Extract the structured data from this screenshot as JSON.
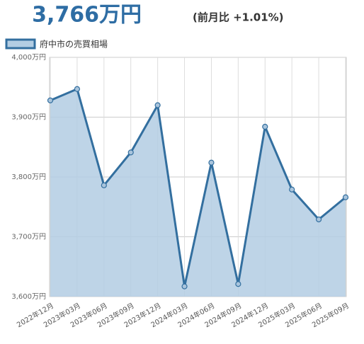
{
  "chart_data": {
    "type": "area",
    "title": "3,766万円",
    "subtitle": "(前月比 +1.01%)",
    "legend": "府中市の売買相場",
    "categories": [
      "2022年12月",
      "2023年03月",
      "2023年06月",
      "2023年09月",
      "2023年12月",
      "2024年03月",
      "2024年06月",
      "2024年09月",
      "2024年12月",
      "2025年03月",
      "2025年06月",
      "2025年09月"
    ],
    "series": [
      {
        "name": "府中市の売買相場",
        "color": "#336f9f",
        "fill": "#b3cde3",
        "values": [
          3928,
          3947,
          3786,
          3841,
          3920,
          3617,
          3824,
          3621,
          3884,
          3779,
          3729,
          3766
        ]
      }
    ],
    "ylim": [
      3600,
      4000
    ],
    "yticks": [
      {
        "value": 3600,
        "label": "3,600万円"
      },
      {
        "value": 3700,
        "label": "3,700万円"
      },
      {
        "value": 3800,
        "label": "3,800万円"
      },
      {
        "value": 3900,
        "label": "3,900万円"
      },
      {
        "value": 4000,
        "label": "4,000万円"
      }
    ],
    "grid": true
  }
}
